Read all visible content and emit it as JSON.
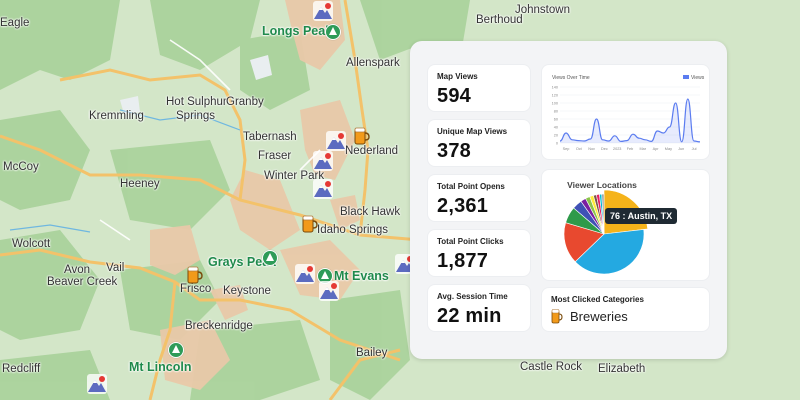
{
  "map": {
    "places": [
      {
        "key": "berthoud",
        "text": "Berthoud"
      },
      {
        "key": "johnstown",
        "text": "Johnstown"
      },
      {
        "key": "allenspark",
        "text": "Allenspark"
      },
      {
        "key": "hot_sulphur",
        "text": "Hot Sulphur"
      },
      {
        "key": "springs",
        "text": "Springs"
      },
      {
        "key": "granby",
        "text": "Granby"
      },
      {
        "key": "kremmling",
        "text": "Kremmling"
      },
      {
        "key": "tabernash",
        "text": "Tabernash"
      },
      {
        "key": "fraser",
        "text": "Fraser"
      },
      {
        "key": "nederland",
        "text": "Nederland"
      },
      {
        "key": "mccoy",
        "text": "McCoy"
      },
      {
        "key": "heeney",
        "text": "Heeney"
      },
      {
        "key": "winter_park",
        "text": "Winter Park"
      },
      {
        "key": "black_hawk",
        "text": "Black Hawk"
      },
      {
        "key": "idaho_springs",
        "text": "Idaho Springs"
      },
      {
        "key": "wolcott",
        "text": "Wolcott"
      },
      {
        "key": "avon",
        "text": "Avon"
      },
      {
        "key": "vail",
        "text": "Vail"
      },
      {
        "key": "beaver_creek",
        "text": "Beaver Creek"
      },
      {
        "key": "frisco",
        "text": "Frisco"
      },
      {
        "key": "keystone",
        "text": "Keystone"
      },
      {
        "key": "breckenridge",
        "text": "Breckenridge"
      },
      {
        "key": "bailey",
        "text": "Bailey"
      },
      {
        "key": "castle_rock",
        "text": "Castle Rock"
      },
      {
        "key": "elizabeth",
        "text": "Elizabeth"
      },
      {
        "key": "eagle",
        "text": "Eagle"
      },
      {
        "key": "redcliff",
        "text": "Redcliff"
      }
    ],
    "parks": [
      {
        "key": "longs_peak",
        "text": "Longs Peak"
      },
      {
        "key": "grays_peak",
        "text": "Grays Peak"
      },
      {
        "key": "mt_evans",
        "text": "Mt Evans"
      },
      {
        "key": "mt_lincoln",
        "text": "Mt Lincoln"
      }
    ]
  },
  "stats": {
    "map_views": {
      "label": "Map Views",
      "value": "594"
    },
    "unique_map_views": {
      "label": "Unique Map Views",
      "value": "378"
    },
    "total_point_opens": {
      "label": "Total Point Opens",
      "value": "2,361"
    },
    "total_point_clicks": {
      "label": "Total Point Clicks",
      "value": "1,877"
    },
    "avg_session_time": {
      "label": "Avg. Session Time",
      "value": "22 min"
    }
  },
  "views_chart": {
    "title": "Views Over Time",
    "legend": "Views",
    "x_labels": [
      "Sep",
      "Oct",
      "Nov",
      "Dec",
      "2023",
      "Feb",
      "Mar",
      "Apr",
      "May",
      "Jun",
      "Jul"
    ],
    "y_labels": [
      "140",
      "120",
      "100",
      "80",
      "60",
      "40",
      "20",
      "0"
    ]
  },
  "viewer_locations": {
    "title": "Viewer Locations",
    "tooltip": "76 : Austin, TX"
  },
  "most_clicked": {
    "title": "Most Clicked Categories",
    "category": "Breweries",
    "icon": "beer-mug-icon"
  },
  "chart_data": [
    {
      "type": "line",
      "title": "Views Over Time",
      "series": [
        {
          "name": "Views",
          "values": [
            5,
            25,
            8,
            6,
            5,
            10,
            60,
            8,
            5,
            18,
            4,
            6,
            22,
            12,
            8,
            4,
            30,
            25,
            40,
            100,
            3,
            110,
            5,
            3
          ]
        }
      ],
      "ylim": [
        0,
        140
      ],
      "color": "#5b7cf0"
    },
    {
      "type": "pie",
      "title": "Viewer Locations",
      "slices": [
        {
          "label": "Austin, TX",
          "value": 76,
          "color": "#f5b31a"
        },
        {
          "value": 130,
          "color": "#24a9e1"
        },
        {
          "value": 55,
          "color": "#e8492f"
        },
        {
          "value": 22,
          "color": "#2e9a4a"
        },
        {
          "value": 13,
          "color": "#3f51b5"
        },
        {
          "value": 7,
          "color": "#7b1fa2"
        },
        {
          "value": 6,
          "color": "#8bc34a"
        },
        {
          "value": 5,
          "color": "#ffeb3b"
        },
        {
          "value": 4,
          "color": "#795548"
        },
        {
          "value": 4,
          "color": "#e91e63"
        },
        {
          "value": 3,
          "color": "#00bcd4"
        },
        {
          "value": 3,
          "color": "#9e9e9e"
        }
      ]
    }
  ]
}
